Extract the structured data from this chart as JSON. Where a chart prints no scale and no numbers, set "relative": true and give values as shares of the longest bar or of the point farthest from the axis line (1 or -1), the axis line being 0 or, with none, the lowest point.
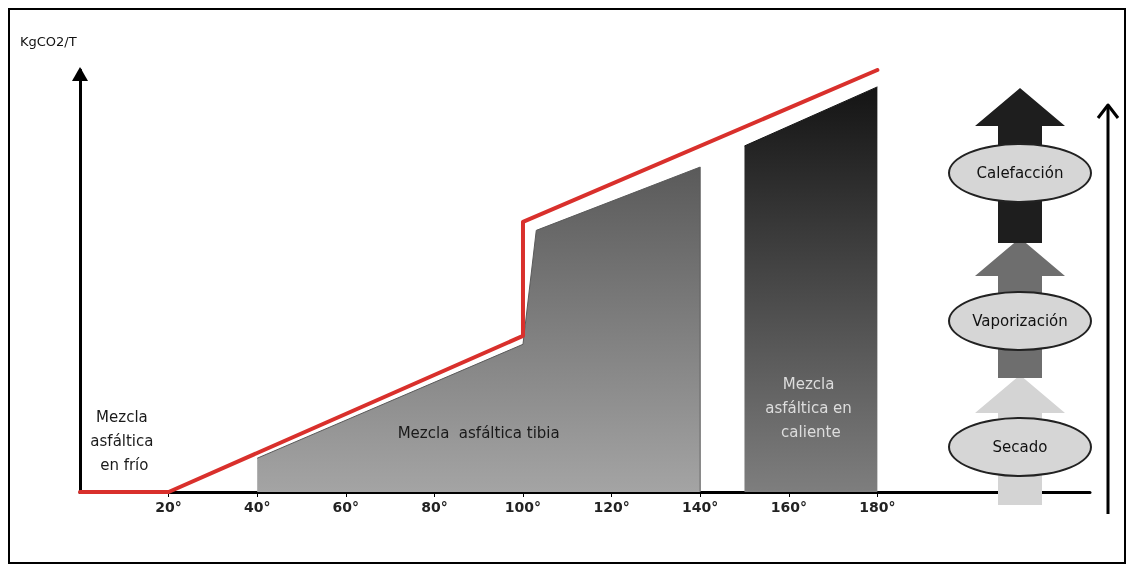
{
  "chart_data": {
    "type": "area",
    "relative": true,
    "ylabel": "KgCO2/T",
    "xlim": [
      0,
      228
    ],
    "xticks": [
      {
        "value": 20,
        "label": "20°"
      },
      {
        "value": 40,
        "label": "40°"
      },
      {
        "value": 60,
        "label": "60°"
      },
      {
        "value": 80,
        "label": "80°"
      },
      {
        "value": 100,
        "label": "100°"
      },
      {
        "value": 120,
        "label": "120°"
      },
      {
        "value": 140,
        "label": "140°"
      },
      {
        "value": 160,
        "label": "160°"
      },
      {
        "value": 180,
        "label": "180°"
      }
    ],
    "series": [
      {
        "color": "#5a5a5a",
        "x": [
          40,
          100,
          103,
          140,
          140
        ],
        "values": [
          0.08,
          0.35,
          0.62,
          0.77,
          0
        ]
      },
      {
        "color": "#141414",
        "x": [
          150,
          180
        ],
        "values": [
          0.82,
          0.96
        ]
      },
      {
        "type": "line",
        "color": "#d9302c",
        "x": [
          0,
          20,
          100,
          100,
          180
        ],
        "values": [
          0,
          0,
          0.37,
          0.64,
          1
        ]
      }
    ],
    "annotations": [
      "Mezcla asfáltica en frío",
      "Mezcla  asfáltica tibia",
      "Mezcla asfáltica en caliente",
      "Secado",
      "Vaporización",
      "Calefacción"
    ],
    "grid": false,
    "marker": "none",
    "line_style": "solid"
  }
}
